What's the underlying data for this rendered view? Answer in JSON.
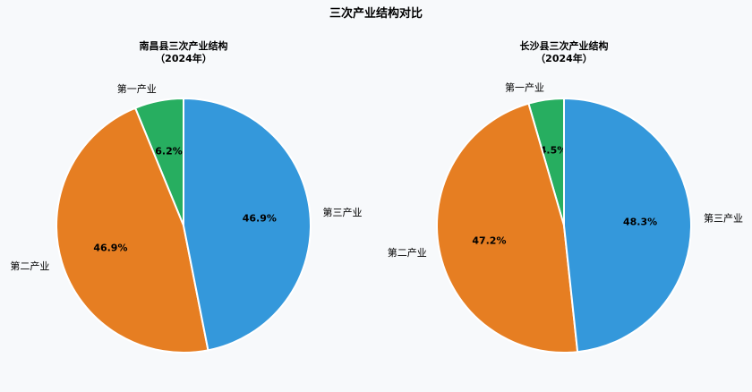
{
  "chart_title": "三次产业结构对比",
  "chart_data": [
    {
      "type": "pie",
      "title_line1": "南昌县三次产业结构",
      "title_line2": "（2024年）",
      "slices": [
        {
          "label": "第一产业",
          "value": 6.2,
          "display": "6.2%",
          "color": "#27ae60"
        },
        {
          "label": "第二产业",
          "value": 46.9,
          "display": "46.9%",
          "color": "#e67e22"
        },
        {
          "label": "第三产业",
          "value": 46.9,
          "display": "46.9%",
          "color": "#3498db"
        }
      ]
    },
    {
      "type": "pie",
      "title_line1": "长沙县三次产业结构",
      "title_line2": "（2024年）",
      "slices": [
        {
          "label": "第一产业",
          "value": 4.5,
          "display": "4.5%",
          "color": "#27ae60"
        },
        {
          "label": "第二产业",
          "value": 47.2,
          "display": "47.2%",
          "color": "#e67e22"
        },
        {
          "label": "第三产业",
          "value": 48.3,
          "display": "48.3%",
          "color": "#3498db"
        }
      ]
    }
  ]
}
